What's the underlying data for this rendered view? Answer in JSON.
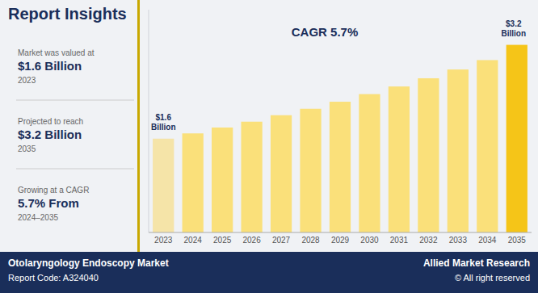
{
  "chart_data": {
    "type": "bar",
    "title": "Report Insights",
    "categories": [
      "2023",
      "2024",
      "2025",
      "2026",
      "2027",
      "2028",
      "2029",
      "2030",
      "2031",
      "2032",
      "2033",
      "2034",
      "2035"
    ],
    "values": [
      1.6,
      1.69,
      1.79,
      1.89,
      2.0,
      2.11,
      2.23,
      2.36,
      2.49,
      2.63,
      2.78,
      2.94,
      3.2
    ],
    "colors": [
      "#F5E4A8",
      "#FAE07A",
      "#FAE07A",
      "#FAE07A",
      "#FAE07A",
      "#FAE07A",
      "#FAE07A",
      "#FAE07A",
      "#FAE07A",
      "#FAE07A",
      "#FAE07A",
      "#FAE07A",
      "#F5C518"
    ],
    "ylim": [
      0,
      3.8
    ],
    "tick_labels": "x",
    "grid": false,
    "annotations": [
      "$1.6\nBillion",
      "$3.2\nBillion",
      "CAGR 5.7%",
      "Market was valued at",
      "$1.6 Billion",
      "2023",
      "Projected to reach",
      "$3.2 Billion",
      "2035",
      "Growing at a CAGR",
      "5.7% From",
      "2024–2035",
      "Otolaryngology Endoscopy Market",
      "Report Code: A324040",
      "Allied Market Research",
      "© All right reserved"
    ]
  }
}
